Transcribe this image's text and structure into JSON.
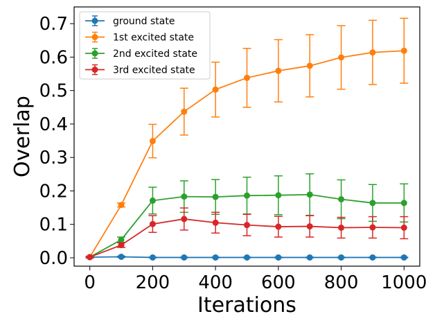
{
  "chart_data": {
    "type": "line",
    "xlabel": "Iterations",
    "ylabel": "Overlap",
    "xlim": [
      -50,
      1050
    ],
    "ylim": [
      -0.025,
      0.75
    ],
    "xticks": [
      0,
      200,
      400,
      600,
      800,
      1000
    ],
    "yticks": [
      0.0,
      0.1,
      0.2,
      0.3,
      0.4,
      0.5,
      0.6,
      0.7
    ],
    "ytick_labels": [
      "0.0",
      "0.1",
      "0.2",
      "0.3",
      "0.4",
      "0.5",
      "0.6",
      "0.7"
    ],
    "legend_position": "top-left",
    "grid": false,
    "x": [
      0,
      100,
      200,
      300,
      400,
      500,
      600,
      700,
      800,
      900,
      1000
    ],
    "series": [
      {
        "name": "ground state",
        "color": "#1f77b4",
        "values": [
          0.002,
          0.003,
          0.001,
          0.001,
          0.001,
          0.001,
          0.001,
          0.001,
          0.001,
          0.001,
          0.001
        ],
        "errors": [
          0.002,
          0.002,
          0.001,
          0.001,
          0.001,
          0.001,
          0.001,
          0.001,
          0.001,
          0.001,
          0.001
        ]
      },
      {
        "name": "1st excited state",
        "color": "#ff7f0e",
        "values": [
          0.002,
          0.158,
          0.349,
          0.437,
          0.503,
          0.538,
          0.559,
          0.574,
          0.599,
          0.614,
          0.619
        ],
        "errors": [
          0.003,
          0.006,
          0.05,
          0.07,
          0.082,
          0.088,
          0.093,
          0.093,
          0.095,
          0.096,
          0.097
        ]
      },
      {
        "name": "2nd excited state",
        "color": "#2ca02c",
        "values": [
          0.002,
          0.054,
          0.171,
          0.183,
          0.182,
          0.186,
          0.187,
          0.189,
          0.175,
          0.164,
          0.164
        ],
        "errors": [
          0.002,
          0.008,
          0.04,
          0.047,
          0.052,
          0.055,
          0.058,
          0.062,
          0.058,
          0.055,
          0.057
        ]
      },
      {
        "name": "3rd excited state",
        "color": "#d62728",
        "values": [
          0.002,
          0.038,
          0.101,
          0.116,
          0.105,
          0.098,
          0.093,
          0.094,
          0.09,
          0.091,
          0.09
        ],
        "errors": [
          0.002,
          0.007,
          0.025,
          0.033,
          0.031,
          0.032,
          0.031,
          0.032,
          0.031,
          0.032,
          0.033
        ]
      }
    ]
  }
}
